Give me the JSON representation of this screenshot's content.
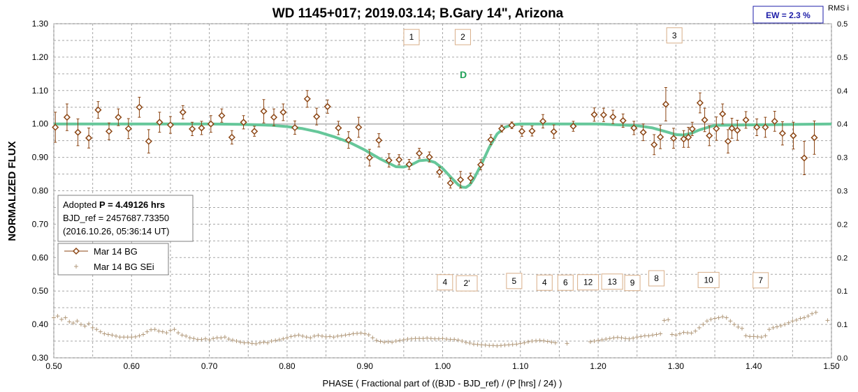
{
  "chart_data": {
    "type": "scatter",
    "title": "WD 1145+017; 2019.03.14; B.Gary 14\",  Arizona",
    "xlabel": "PHASE ( Fractional part of ((BJD - BJD_ref) / (P [hrs] / 24) )",
    "ylabel": "NORMALIZED FLUX",
    "ylabel_right": "RMS i",
    "xlim": [
      0.5,
      1.5
    ],
    "ylim": [
      0.3,
      1.3
    ],
    "ylim_right": [
      0.0,
      0.5
    ],
    "x_ticks": [
      "0.50",
      "0.60",
      "0.70",
      "0.80",
      "0.90",
      "1.00",
      "1.10",
      "1.20",
      "1.30",
      "1.40",
      "1.50"
    ],
    "y_ticks": [
      "0.30",
      "0.40",
      "0.50",
      "0.60",
      "0.70",
      "0.80",
      "0.90",
      "1.00",
      "1.10",
      "1.20",
      "1.30"
    ],
    "y_right_ticks": [
      "0.0",
      "0.1",
      "0.1",
      "0.2",
      "0.2",
      "0.3",
      "0.3",
      "0.4",
      "0.4",
      "0.5",
      "0.5"
    ],
    "grid": true,
    "ew_label": "EW =  2.3 %",
    "dip_label": "D",
    "info": {
      "line1_prefix": "Adopted ",
      "line1_bold": "P = 4.49126 hrs",
      "line2": "BJD_ref = 2457687.73350",
      "line3": "(2016.10.26, 05:36:14 UT)"
    },
    "legend": {
      "placement": "left-middle",
      "entries": [
        "Mar 14 BG",
        "Mar 14 BG SEi"
      ]
    },
    "colors": {
      "points": "#8B4513",
      "model": "#66c79a",
      "sei": "#b29a7c",
      "ew_text": "#1c1ca8",
      "dip_text": "#22a35a",
      "box_border": "#d8ae88"
    },
    "upper_box_labels": [
      {
        "text": "1",
        "x": 0.96,
        "y": 1.26
      },
      {
        "text": "2",
        "x": 1.026,
        "y": 1.26
      },
      {
        "text": "3",
        "x": 1.298,
        "y": 1.265
      }
    ],
    "lower_box_labels": [
      {
        "text": "4",
        "x": 1.003,
        "y": 0.526
      },
      {
        "text": "2'",
        "x": 1.031,
        "y": 0.523
      },
      {
        "text": "5",
        "x": 1.092,
        "y": 0.53
      },
      {
        "text": "4",
        "x": 1.131,
        "y": 0.525
      },
      {
        "text": "6",
        "x": 1.158,
        "y": 0.525
      },
      {
        "text": "12",
        "x": 1.187,
        "y": 0.526
      },
      {
        "text": "13",
        "x": 1.218,
        "y": 0.528
      },
      {
        "text": "9",
        "x": 1.244,
        "y": 0.524
      },
      {
        "text": "8",
        "x": 1.275,
        "y": 0.538
      },
      {
        "text": "10",
        "x": 1.342,
        "y": 0.533
      },
      {
        "text": "7",
        "x": 1.409,
        "y": 0.532
      }
    ],
    "series": [
      {
        "name": "Mar 14 BG",
        "x": [
          0.502,
          0.517,
          0.531,
          0.545,
          0.557,
          0.571,
          0.583,
          0.596,
          0.61,
          0.622,
          0.636,
          0.65,
          0.666,
          0.678,
          0.69,
          0.702,
          0.716,
          0.729,
          0.744,
          0.758,
          0.77,
          0.783,
          0.795,
          0.81,
          0.826,
          0.838,
          0.852,
          0.866,
          0.879,
          0.892,
          0.906,
          0.918,
          0.931,
          0.944,
          0.957,
          0.97,
          0.983,
          0.996,
          1.01,
          1.023,
          1.036,
          1.049,
          1.062,
          1.076,
          1.089,
          1.102,
          1.115,
          1.129,
          1.143,
          1.168,
          1.195,
          1.207,
          1.219,
          1.232,
          1.246,
          1.258,
          1.272,
          1.28,
          1.287,
          1.297,
          1.31,
          1.316,
          1.321,
          1.331,
          1.337,
          1.343,
          1.352,
          1.36,
          1.367,
          1.372,
          1.379,
          1.39,
          1.404,
          1.415,
          1.427,
          1.437,
          1.451,
          1.465,
          1.478
        ],
        "y": [
          0.99,
          1.02,
          0.975,
          0.958,
          1.042,
          0.978,
          1.02,
          0.986,
          1.05,
          0.948,
          1.005,
          0.997,
          1.035,
          0.985,
          0.988,
          1.0,
          1.025,
          0.96,
          1.005,
          0.978,
          1.038,
          1.02,
          1.035,
          0.989,
          1.075,
          1.022,
          1.052,
          0.988,
          0.952,
          0.99,
          0.899,
          0.951,
          0.891,
          0.893,
          0.879,
          0.912,
          0.901,
          0.856,
          0.823,
          0.833,
          0.838,
          0.878,
          0.953,
          0.986,
          0.996,
          0.978,
          0.979,
          1.008,
          0.977,
          0.993,
          1.028,
          1.027,
          1.021,
          1.01,
          0.988,
          0.975,
          0.938,
          0.961,
          1.059,
          0.957,
          0.955,
          0.96,
          0.985,
          1.063,
          1.012,
          0.965,
          0.986,
          1.03,
          0.948,
          0.987,
          0.981,
          1.012,
          0.99,
          0.99,
          1.008,
          0.972,
          0.965,
          0.898,
          0.959
        ],
        "err": [
          0.045,
          0.04,
          0.04,
          0.03,
          0.025,
          0.025,
          0.025,
          0.03,
          0.03,
          0.035,
          0.03,
          0.025,
          0.02,
          0.02,
          0.02,
          0.025,
          0.02,
          0.02,
          0.02,
          0.015,
          0.035,
          0.025,
          0.025,
          0.02,
          0.025,
          0.025,
          0.02,
          0.02,
          0.025,
          0.03,
          0.025,
          0.02,
          0.02,
          0.015,
          0.015,
          0.015,
          0.015,
          0.015,
          0.015,
          0.025,
          0.015,
          0.015,
          0.015,
          0.01,
          0.01,
          0.015,
          0.015,
          0.02,
          0.02,
          0.015,
          0.02,
          0.02,
          0.02,
          0.02,
          0.02,
          0.025,
          0.03,
          0.035,
          0.05,
          0.03,
          0.025,
          0.03,
          0.02,
          0.03,
          0.035,
          0.03,
          0.035,
          0.03,
          0.035,
          0.03,
          0.03,
          0.025,
          0.025,
          0.03,
          0.03,
          0.035,
          0.04,
          0.05,
          0.05
        ]
      },
      {
        "name": "Mar 14 BG SEi",
        "x": [
          0.5,
          0.505,
          0.51,
          0.515,
          0.52,
          0.525,
          0.53,
          0.535,
          0.54,
          0.545,
          0.55,
          0.555,
          0.56,
          0.565,
          0.57,
          0.575,
          0.58,
          0.585,
          0.59,
          0.595,
          0.6,
          0.605,
          0.61,
          0.615,
          0.62,
          0.625,
          0.63,
          0.635,
          0.64,
          0.645,
          0.65,
          0.655,
          0.66,
          0.665,
          0.67,
          0.675,
          0.68,
          0.685,
          0.69,
          0.695,
          0.7,
          0.705,
          0.71,
          0.715,
          0.72,
          0.725,
          0.73,
          0.735,
          0.74,
          0.745,
          0.75,
          0.755,
          0.76,
          0.765,
          0.77,
          0.775,
          0.78,
          0.785,
          0.79,
          0.795,
          0.8,
          0.805,
          0.81,
          0.815,
          0.82,
          0.825,
          0.83,
          0.835,
          0.84,
          0.845,
          0.85,
          0.855,
          0.86,
          0.865,
          0.87,
          0.875,
          0.88,
          0.885,
          0.89,
          0.895,
          0.9,
          0.905,
          0.91,
          0.915,
          0.92,
          0.925,
          0.93,
          0.935,
          0.94,
          0.945,
          0.95,
          0.955,
          0.96,
          0.965,
          0.97,
          0.975,
          0.98,
          0.985,
          0.99,
          0.995,
          1.0,
          1.005,
          1.01,
          1.015,
          1.02,
          1.025,
          1.03,
          1.035,
          1.04,
          1.045,
          1.05,
          1.055,
          1.06,
          1.065,
          1.07,
          1.075,
          1.08,
          1.085,
          1.09,
          1.095,
          1.1,
          1.105,
          1.11,
          1.115,
          1.12,
          1.125,
          1.13,
          1.135,
          1.14,
          1.145,
          1.16,
          1.19,
          1.195,
          1.2,
          1.205,
          1.21,
          1.215,
          1.22,
          1.225,
          1.23,
          1.235,
          1.24,
          1.245,
          1.25,
          1.255,
          1.26,
          1.265,
          1.27,
          1.275,
          1.28,
          1.285,
          1.29,
          1.295,
          1.3,
          1.305,
          1.31,
          1.315,
          1.32,
          1.325,
          1.33,
          1.335,
          1.34,
          1.345,
          1.35,
          1.355,
          1.36,
          1.365,
          1.37,
          1.375,
          1.38,
          1.385,
          1.39,
          1.395,
          1.4,
          1.405,
          1.41,
          1.415,
          1.42,
          1.425,
          1.43,
          1.435,
          1.44,
          1.445,
          1.45,
          1.455,
          1.46,
          1.465,
          1.47,
          1.475,
          1.48,
          1.495
        ],
        "y": [
          0.42,
          0.425,
          0.415,
          0.42,
          0.408,
          0.404,
          0.41,
          0.4,
          0.395,
          0.402,
          0.39,
          0.385,
          0.378,
          0.372,
          0.37,
          0.368,
          0.365,
          0.362,
          0.362,
          0.362,
          0.362,
          0.363,
          0.366,
          0.37,
          0.378,
          0.384,
          0.385,
          0.38,
          0.378,
          0.375,
          0.382,
          0.385,
          0.375,
          0.368,
          0.365,
          0.36,
          0.358,
          0.355,
          0.355,
          0.357,
          0.354,
          0.358,
          0.36,
          0.36,
          0.362,
          0.356,
          0.353,
          0.35,
          0.347,
          0.345,
          0.345,
          0.343,
          0.342,
          0.345,
          0.347,
          0.345,
          0.35,
          0.352,
          0.354,
          0.357,
          0.36,
          0.364,
          0.366,
          0.368,
          0.365,
          0.362,
          0.36,
          0.365,
          0.367,
          0.365,
          0.363,
          0.364,
          0.362,
          0.365,
          0.366,
          0.368,
          0.37,
          0.372,
          0.373,
          0.374,
          0.372,
          0.369,
          0.36,
          0.352,
          0.349,
          0.347,
          0.348,
          0.347,
          0.35,
          0.352,
          0.354,
          0.356,
          0.357,
          0.358,
          0.358,
          0.358,
          0.359,
          0.358,
          0.357,
          0.357,
          0.358,
          0.356,
          0.355,
          0.355,
          0.353,
          0.35,
          0.346,
          0.344,
          0.341,
          0.34,
          0.339,
          0.338,
          0.337,
          0.337,
          0.336,
          0.337,
          0.338,
          0.339,
          0.34,
          0.341,
          0.343,
          0.345,
          0.348,
          0.35,
          0.351,
          0.352,
          0.351,
          0.349,
          0.347,
          0.345,
          0.343,
          0.348,
          0.35,
          0.352,
          0.354,
          0.356,
          0.358,
          0.36,
          0.361,
          0.36,
          0.358,
          0.357,
          0.359,
          0.362,
          0.364,
          0.366,
          0.366,
          0.368,
          0.37,
          0.372,
          0.412,
          0.414,
          0.37,
          0.368,
          0.372,
          0.376,
          0.375,
          0.374,
          0.38,
          0.39,
          0.4,
          0.41,
          0.415,
          0.418,
          0.42,
          0.423,
          0.42,
          0.41,
          0.4,
          0.392,
          0.388,
          0.366,
          0.364,
          0.364,
          0.363,
          0.362,
          0.366,
          0.385,
          0.39,
          0.393,
          0.396,
          0.4,
          0.405,
          0.41,
          0.413,
          0.418,
          0.42,
          0.425,
          0.432,
          0.436,
          0.412
        ]
      },
      {
        "name": "model",
        "x": [
          0.5,
          0.6,
          0.7,
          0.74,
          0.78,
          0.8,
          0.82,
          0.84,
          0.86,
          0.88,
          0.9,
          0.92,
          0.94,
          0.95,
          0.96,
          0.97,
          0.98,
          0.99,
          1.0,
          1.01,
          1.02,
          1.025,
          1.03,
          1.035,
          1.04,
          1.05,
          1.06,
          1.07,
          1.08,
          1.09,
          1.1,
          1.2,
          1.25,
          1.27,
          1.29,
          1.3,
          1.31,
          1.32,
          1.33,
          1.35,
          1.5
        ],
        "y": [
          1.0,
          1.0,
          1.0,
          0.999,
          0.996,
          0.992,
          0.986,
          0.976,
          0.962,
          0.945,
          0.922,
          0.895,
          0.872,
          0.871,
          0.878,
          0.89,
          0.892,
          0.885,
          0.867,
          0.842,
          0.818,
          0.811,
          0.81,
          0.818,
          0.835,
          0.88,
          0.93,
          0.97,
          0.99,
          0.998,
          1.0,
          1.0,
          0.995,
          0.988,
          0.975,
          0.968,
          0.967,
          0.972,
          0.982,
          0.996,
          1.0
        ]
      }
    ]
  }
}
